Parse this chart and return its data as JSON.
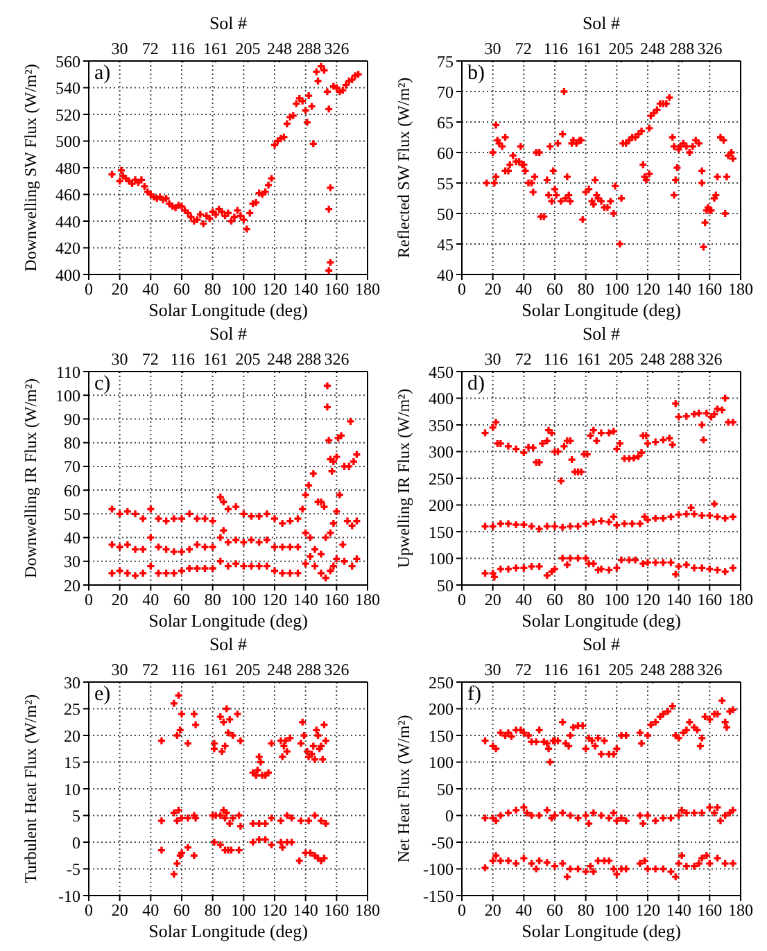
{
  "chart_data": [
    {
      "type": "scatter",
      "xlabel": "Solar Longitude (deg)",
      "x2label": "Sol #",
      "ylabel": "Downwelling SW Flux (W/m²)",
      "xlim": [
        0,
        180
      ],
      "xticks": [
        0,
        20,
        40,
        60,
        80,
        100,
        120,
        140,
        160,
        180
      ],
      "x2lim": [
        -12,
        368
      ],
      "x2ticks": [
        30,
        72,
        116,
        161,
        205,
        248,
        288,
        326
      ],
      "ylim": [
        400,
        560
      ],
      "yticks": [
        400,
        420,
        440,
        460,
        480,
        500,
        520,
        540,
        560
      ],
      "grid": true,
      "marker": "cross",
      "annotations": [
        "a)"
      ],
      "series": [
        {
          "color": "#ff0000",
          "x": [
            15,
            20,
            21,
            22,
            24,
            26,
            28,
            30,
            32,
            34,
            36,
            38,
            40,
            42,
            44,
            46,
            48,
            50,
            52,
            54,
            56,
            58,
            60,
            62,
            64,
            66,
            68,
            70,
            72,
            74,
            76,
            78,
            80,
            82,
            84,
            86,
            88,
            90,
            92,
            94,
            96,
            98,
            100,
            102,
            104,
            106,
            108,
            110,
            112,
            114,
            116,
            118,
            120,
            122,
            124,
            126,
            128,
            130,
            132,
            134,
            136,
            138,
            140,
            141,
            142,
            144,
            145,
            147,
            148,
            150,
            152,
            154,
            155,
            155,
            156,
            156,
            155,
            158,
            160,
            162,
            164,
            166,
            168,
            170,
            172,
            174
          ],
          "values": [
            475,
            470,
            478,
            474,
            472,
            470,
            468,
            471,
            469,
            471,
            466,
            462,
            460,
            458,
            457,
            458,
            456,
            457,
            453,
            451,
            450,
            452,
            451,
            448,
            446,
            443,
            440,
            441,
            445,
            438,
            444,
            442,
            447,
            445,
            449,
            447,
            444,
            446,
            440,
            443,
            448,
            444,
            441,
            434,
            446,
            453,
            454,
            461,
            460,
            462,
            467,
            472,
            497,
            500,
            502,
            503,
            513,
            518,
            519,
            528,
            532,
            530,
            523,
            514,
            534,
            526,
            498,
            552,
            545,
            556,
            553,
            537,
            524,
            449,
            465,
            409,
            403,
            541,
            540,
            537,
            538,
            542,
            545,
            546,
            549,
            550
          ]
        }
      ]
    },
    {
      "type": "scatter",
      "xlabel": "Solar Longitude (deg)",
      "x2label": "Sol #",
      "ylabel": "Reflected SW Flux (W/m²)",
      "xlim": [
        0,
        180
      ],
      "xticks": [
        0,
        20,
        40,
        60,
        80,
        100,
        120,
        140,
        160,
        180
      ],
      "x2lim": [
        -12,
        368
      ],
      "x2ticks": [
        30,
        72,
        116,
        161,
        205,
        248,
        288,
        326
      ],
      "ylim": [
        40,
        75
      ],
      "yticks": [
        40,
        45,
        50,
        55,
        60,
        65,
        70,
        75
      ],
      "grid": true,
      "marker": "cross",
      "annotations": [
        "b)"
      ],
      "series": [
        {
          "color": "#ff0000",
          "x": [
            16,
            20,
            21,
            22,
            22,
            23,
            24,
            26,
            28,
            28,
            30,
            31,
            33,
            35,
            37,
            38,
            39,
            40,
            41,
            43,
            45,
            46,
            47,
            48,
            50,
            51,
            53,
            55,
            56,
            57,
            58,
            59,
            60,
            61,
            62,
            64,
            65,
            66,
            67,
            68,
            69,
            70,
            71,
            72,
            74,
            76,
            77,
            78,
            80,
            82,
            84,
            85,
            86,
            87,
            88,
            90,
            92,
            94,
            96,
            98,
            99,
            102,
            103,
            104,
            106,
            108,
            110,
            112,
            114,
            116,
            117,
            118,
            119,
            121,
            121,
            122,
            124,
            126,
            128,
            130,
            132,
            134,
            136,
            137,
            137,
            138,
            139,
            140,
            141,
            143,
            145,
            147,
            149,
            151,
            153,
            155,
            155,
            156,
            157,
            158,
            159,
            160,
            161,
            163,
            164,
            165,
            167,
            169,
            170,
            171,
            172,
            174,
            175
          ],
          "values": [
            55,
            60,
            55,
            56,
            64.5,
            62,
            61.5,
            61,
            62.5,
            57,
            57,
            58,
            59.5,
            58.5,
            58.5,
            61,
            58,
            58,
            57,
            55,
            55,
            53.5,
            56,
            60,
            60,
            49.5,
            49.5,
            55.5,
            53,
            61,
            52,
            57,
            54,
            53,
            61.5,
            52,
            63,
            70,
            52.5,
            56,
            53,
            52,
            61.5,
            62,
            61.5,
            62,
            62,
            49,
            53.5,
            54,
            52,
            51.5,
            55.5,
            53,
            52.5,
            52,
            51,
            51,
            52,
            50,
            54.5,
            45,
            52.5,
            61.5,
            61.5,
            62,
            62.5,
            62.5,
            63,
            63.5,
            58,
            56,
            55.5,
            56.5,
            64,
            66,
            66.5,
            67,
            68,
            68,
            68,
            69,
            62.5,
            61,
            53,
            55.5,
            57.5,
            60.5,
            61,
            61.5,
            61,
            60,
            61,
            62,
            61.5,
            57,
            55,
            44.5,
            48.5,
            50.5,
            51,
            50.5,
            50.5,
            52.5,
            53,
            56,
            62.5,
            62,
            50,
            56,
            59.5,
            60,
            59
          ]
        }
      ]
    },
    {
      "type": "scatter",
      "xlabel": "Solar Longitude (deg)",
      "x2label": "Sol #",
      "ylabel": "Downwelling IR Flux (W/m²)",
      "xlim": [
        0,
        180
      ],
      "xticks": [
        0,
        20,
        40,
        60,
        80,
        100,
        120,
        140,
        160,
        180
      ],
      "x2lim": [
        -12,
        368
      ],
      "x2ticks": [
        30,
        72,
        116,
        161,
        205,
        248,
        288,
        326
      ],
      "ylim": [
        20,
        110
      ],
      "yticks": [
        20,
        30,
        40,
        50,
        60,
        70,
        80,
        90,
        100,
        110
      ],
      "grid": true,
      "marker": "cross",
      "annotations": [
        "c)"
      ],
      "series": [
        {
          "color": "#ff0000",
          "x": [
            15,
            20,
            25,
            30,
            35,
            40,
            45,
            50,
            55,
            60,
            65,
            70,
            75,
            80,
            85,
            87,
            90,
            95,
            100,
            105,
            110,
            115,
            120,
            125,
            130,
            135,
            138,
            140,
            142,
            145,
            148,
            150,
            152,
            154,
            154,
            155,
            156,
            157,
            158,
            160,
            161,
            163,
            165,
            168,
            169,
            171,
            173,
            15,
            20,
            25,
            30,
            35,
            40,
            45,
            50,
            55,
            60,
            65,
            70,
            75,
            80,
            85,
            87,
            90,
            95,
            100,
            105,
            110,
            115,
            120,
            125,
            130,
            135,
            140,
            143,
            146,
            150,
            153,
            156,
            158,
            160,
            162,
            164,
            167,
            170,
            173,
            15,
            20,
            25,
            30,
            35,
            40,
            45,
            50,
            55,
            60,
            65,
            70,
            75,
            80,
            85,
            90,
            95,
            100,
            105,
            110,
            115,
            120,
            125,
            130,
            135,
            140,
            143,
            146,
            150,
            153,
            156,
            158,
            160,
            165,
            170,
            173
          ],
          "values": [
            52,
            50,
            51,
            50,
            48,
            52,
            48,
            47,
            48,
            48,
            50,
            48,
            48,
            47,
            57,
            55,
            52,
            53,
            50,
            49,
            49,
            50,
            48,
            46,
            47,
            48,
            52,
            58,
            62,
            67,
            55,
            55,
            53,
            104,
            95,
            81,
            73,
            68,
            72,
            74,
            82,
            83,
            70,
            70,
            89,
            72,
            75,
            37,
            36,
            37,
            35,
            35,
            40,
            36,
            35,
            34,
            34,
            35,
            37,
            36,
            36,
            40,
            43,
            38,
            39,
            38,
            39,
            38,
            39,
            36,
            36,
            36,
            36,
            42,
            40,
            35,
            33,
            40,
            42,
            46,
            51,
            58,
            37,
            47,
            45,
            47,
            25,
            26,
            25,
            24,
            25,
            28,
            25,
            25,
            25,
            26,
            27,
            27,
            27,
            27,
            30,
            28,
            29,
            28,
            28,
            28,
            28,
            26,
            25,
            25,
            25,
            29,
            32,
            28,
            25,
            23,
            26,
            28,
            31,
            30,
            28,
            31
          ]
        }
      ]
    },
    {
      "type": "scatter",
      "xlabel": "Solar Longitude (deg)",
      "x2label": "Sol #",
      "ylabel": "Upwelling IR Flux (W/m²)",
      "xlim": [
        0,
        180
      ],
      "xticks": [
        0,
        20,
        40,
        60,
        80,
        100,
        120,
        140,
        160,
        180
      ],
      "x2lim": [
        -12,
        368
      ],
      "x2ticks": [
        30,
        72,
        116,
        161,
        205,
        248,
        288,
        326
      ],
      "ylim": [
        50,
        450
      ],
      "yticks": [
        50,
        100,
        150,
        200,
        250,
        300,
        350,
        400,
        450
      ],
      "grid": true,
      "marker": "cross",
      "annotations": [
        "d)"
      ],
      "series": [
        {
          "color": "#ff0000",
          "x": [
            15,
            20,
            22,
            23,
            25,
            30,
            35,
            40,
            43,
            46,
            48,
            50,
            52,
            55,
            56,
            58,
            60,
            62,
            64,
            66,
            68,
            70,
            71,
            73,
            75,
            77,
            79,
            81,
            83,
            85,
            87,
            90,
            95,
            98,
            100,
            102,
            105,
            108,
            111,
            114,
            116,
            117,
            119,
            120,
            125,
            130,
            134,
            136,
            138,
            140,
            145,
            150,
            153,
            155,
            156,
            158,
            161,
            163,
            165,
            168,
            170,
            172,
            175,
            15,
            20,
            25,
            30,
            35,
            40,
            45,
            50,
            55,
            60,
            65,
            70,
            75,
            80,
            85,
            90,
            95,
            98,
            100,
            105,
            110,
            115,
            118,
            120,
            125,
            130,
            135,
            140,
            145,
            148,
            150,
            155,
            160,
            163,
            165,
            170,
            175,
            15,
            20,
            21,
            25,
            30,
            35,
            40,
            45,
            50,
            55,
            58,
            60,
            65,
            68,
            70,
            75,
            80,
            82,
            85,
            88,
            90,
            95,
            100,
            103,
            108,
            112,
            117,
            120,
            125,
            130,
            135,
            138,
            140,
            145,
            150,
            155,
            160,
            165,
            170,
            175
          ],
          "values": [
            335,
            345,
            355,
            315,
            315,
            310,
            305,
            298,
            308,
            307,
            280,
            280,
            315,
            320,
            340,
            335,
            300,
            300,
            245,
            310,
            320,
            320,
            285,
            262,
            262,
            262,
            295,
            295,
            330,
            340,
            320,
            335,
            335,
            338,
            305,
            315,
            287,
            287,
            288,
            291,
            298,
            330,
            330,
            315,
            318,
            322,
            325,
            313,
            390,
            365,
            366,
            370,
            372,
            350,
            322,
            372,
            365,
            370,
            380,
            378,
            400,
            355,
            355,
            160,
            160,
            165,
            165,
            163,
            163,
            160,
            155,
            160,
            160,
            158,
            160,
            160,
            165,
            168,
            170,
            168,
            178,
            162,
            165,
            165,
            165,
            178,
            172,
            175,
            175,
            178,
            182,
            183,
            195,
            183,
            180,
            180,
            202,
            178,
            175,
            178,
            72,
            72,
            65,
            80,
            80,
            82,
            82,
            85,
            85,
            68,
            75,
            80,
            100,
            88,
            100,
            100,
            100,
            90,
            90,
            78,
            80,
            78,
            82,
            97,
            97,
            97,
            90,
            92,
            92,
            92,
            92,
            70,
            85,
            88,
            82,
            82,
            80,
            78,
            75,
            82
          ]
        }
      ]
    },
    {
      "type": "scatter",
      "xlabel": "Solar Longitude (deg)",
      "x2label": "Sol #",
      "ylabel": "Turbulent Heat Flux (W/m²)",
      "xlim": [
        0,
        180
      ],
      "xticks": [
        0,
        20,
        40,
        60,
        80,
        100,
        120,
        140,
        160,
        180
      ],
      "x2lim": [
        -12,
        368
      ],
      "x2ticks": [
        30,
        72,
        116,
        161,
        205,
        248,
        288,
        326
      ],
      "ylim": [
        -10,
        30
      ],
      "yticks": [
        -10,
        -5,
        0,
        5,
        10,
        15,
        20,
        25,
        30
      ],
      "grid": true,
      "marker": "cross",
      "annotations": [
        "e)"
      ],
      "series": [
        {
          "color": "#ff0000",
          "x": [
            47,
            55,
            57,
            58,
            59,
            60,
            64,
            68,
            69,
            81,
            81,
            85,
            86,
            87,
            88,
            89,
            90,
            91,
            93,
            96,
            98,
            106,
            108,
            109,
            110,
            111,
            112,
            114,
            116,
            118,
            124,
            125,
            126,
            127,
            128,
            130,
            137,
            138,
            139,
            141,
            142,
            144,
            145,
            146,
            147,
            148,
            149,
            150,
            151,
            152,
            153,
            47,
            55,
            57,
            58,
            60,
            64,
            68,
            69,
            80,
            82,
            85,
            87,
            88,
            89,
            91,
            93,
            97,
            98,
            106,
            110,
            114,
            118,
            124,
            128,
            131,
            137,
            142,
            146,
            150,
            153,
            47,
            55,
            57,
            59,
            60,
            64,
            68,
            81,
            85,
            88,
            90,
            92,
            97,
            106,
            110,
            114,
            118,
            124,
            125,
            128,
            131,
            136,
            140,
            143,
            146,
            148,
            150,
            152
          ],
          "values": [
            19,
            26,
            20,
            27.5,
            21,
            24,
            18.5,
            24,
            22,
            17.5,
            18.5,
            23.5,
            17,
            22.5,
            18,
            25,
            20.5,
            23,
            20,
            24,
            19,
            13,
            12.5,
            13.5,
            16,
            15,
            12.5,
            12.5,
            13,
            18.5,
            19,
            16,
            18,
            19,
            17,
            19.5,
            18.5,
            22.5,
            20,
            17,
            16,
            16.5,
            18,
            15.5,
            21,
            20,
            17.5,
            18,
            15.5,
            22,
            19,
            4,
            5.5,
            4,
            6,
            4.5,
            4.5,
            5,
            4.5,
            5,
            5,
            5,
            6,
            4.5,
            5.5,
            3.5,
            4.5,
            5,
            3,
            3.5,
            3.5,
            3.5,
            4.5,
            4,
            5,
            4.5,
            4,
            4,
            5,
            4,
            3.5,
            -1.5,
            -6,
            -4,
            -2.5,
            -2,
            -1,
            -2.5,
            0,
            -0.5,
            -1.5,
            -1.5,
            -1.5,
            -1.5,
            0,
            0.5,
            0.5,
            -0.5,
            0,
            -1,
            0,
            0,
            -3.5,
            -2,
            -2,
            -2.5,
            -3,
            -3.5,
            -3
          ]
        }
      ]
    },
    {
      "type": "scatter",
      "xlabel": "Solar Longitude (deg)",
      "x2label": "Sol #",
      "ylabel": "Net Heat Flux (W/m²)",
      "xlim": [
        0,
        180
      ],
      "xticks": [
        0,
        20,
        40,
        60,
        80,
        100,
        120,
        140,
        160,
        180
      ],
      "x2lim": [
        -12,
        368
      ],
      "x2ticks": [
        30,
        72,
        116,
        161,
        205,
        248,
        288,
        326
      ],
      "ylim": [
        -150,
        250
      ],
      "yticks": [
        -150,
        -100,
        -50,
        0,
        50,
        100,
        150,
        200,
        250
      ],
      "grid": true,
      "marker": "cross",
      "annotations": [
        "f)"
      ],
      "series": [
        {
          "color": "#ff0000",
          "x": [
            15,
            20,
            22,
            25,
            28,
            30,
            32,
            35,
            38,
            40,
            43,
            45,
            48,
            50,
            53,
            55,
            56,
            57,
            59,
            60,
            62,
            65,
            67,
            69,
            70,
            72,
            75,
            78,
            80,
            82,
            84,
            86,
            88,
            90,
            92,
            95,
            98,
            100,
            103,
            106,
            115,
            116,
            120,
            122,
            125,
            128,
            130,
            133,
            136,
            138,
            140,
            143,
            145,
            147,
            150,
            152,
            154,
            155,
            157,
            160,
            163,
            165,
            168,
            170,
            171,
            173,
            175,
            15,
            20,
            22,
            25,
            30,
            35,
            40,
            42,
            45,
            50,
            55,
            58,
            60,
            65,
            70,
            75,
            80,
            82,
            85,
            90,
            95,
            98,
            100,
            103,
            106,
            115,
            117,
            120,
            125,
            130,
            135,
            140,
            142,
            145,
            150,
            155,
            160,
            163,
            165,
            167,
            170,
            173,
            175,
            15,
            20,
            22,
            25,
            30,
            35,
            40,
            45,
            48,
            50,
            55,
            60,
            65,
            68,
            70,
            75,
            80,
            83,
            85,
            88,
            92,
            95,
            98,
            100,
            103,
            106,
            115,
            118,
            120,
            125,
            130,
            135,
            138,
            140,
            142,
            145,
            150,
            153,
            155,
            158,
            160,
            165,
            170,
            175
          ],
          "values": [
            140,
            130,
            125,
            155,
            150,
            155,
            148,
            160,
            160,
            155,
            150,
            138,
            138,
            160,
            138,
            135,
            125,
            100,
            140,
            140,
            140,
            175,
            135,
            130,
            150,
            165,
            168,
            168,
            125,
            145,
            140,
            130,
            145,
            115,
            140,
            115,
            115,
            125,
            150,
            150,
            155,
            135,
            150,
            170,
            175,
            185,
            190,
            195,
            205,
            150,
            145,
            155,
            160,
            175,
            165,
            160,
            130,
            145,
            185,
            180,
            190,
            190,
            215,
            175,
            165,
            195,
            198,
            -5,
            -5,
            -10,
            0,
            5,
            10,
            15,
            5,
            0,
            0,
            10,
            -5,
            0,
            5,
            0,
            -5,
            0,
            -15,
            5,
            0,
            -5,
            5,
            -10,
            -5,
            -10,
            0,
            -15,
            0,
            -10,
            -5,
            -5,
            0,
            10,
            5,
            5,
            5,
            15,
            5,
            15,
            -10,
            0,
            5,
            10,
            -98,
            -85,
            -75,
            -85,
            -85,
            -90,
            -80,
            -90,
            -100,
            -85,
            -88,
            -95,
            -90,
            -115,
            -100,
            -100,
            -105,
            -95,
            -105,
            -85,
            -85,
            -85,
            -100,
            -110,
            -100,
            -100,
            -90,
            -85,
            -100,
            -100,
            -100,
            -105,
            -115,
            -90,
            -75,
            -95,
            -95,
            -90,
            -80,
            -75,
            -90,
            -80,
            -90,
            -90
          ]
        }
      ]
    }
  ]
}
